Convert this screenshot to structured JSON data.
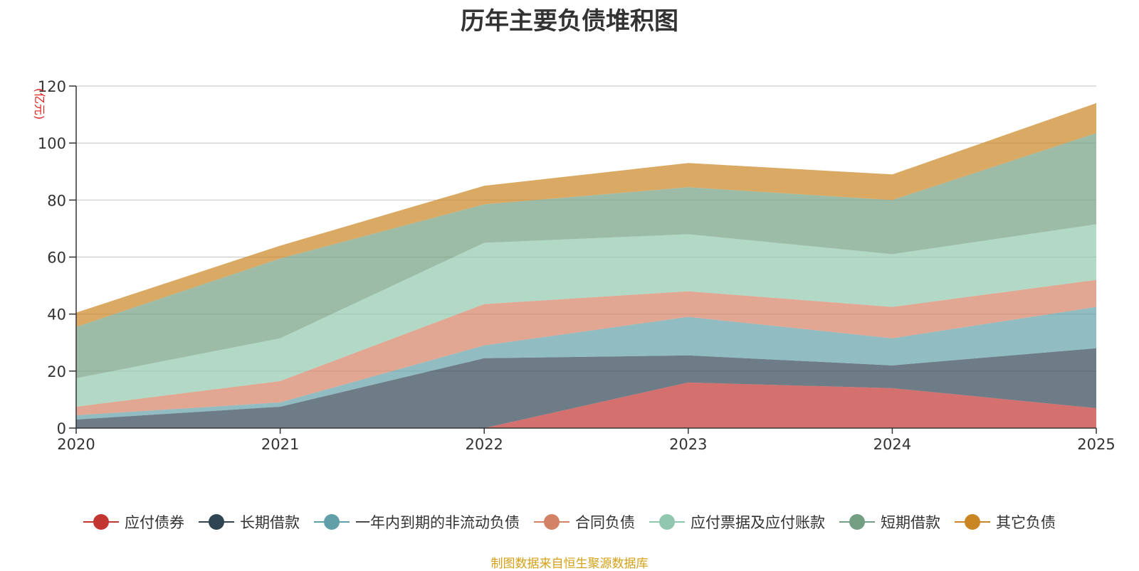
{
  "chart_data": {
    "type": "area",
    "stacked": true,
    "title": "历年主要负债堆积图",
    "unit_label": "(亿元)",
    "source_note": "制图数据来自恒生聚源数据库",
    "x": [
      "2020",
      "2021",
      "2022",
      "2023",
      "2024",
      "2025"
    ],
    "ylim": [
      0,
      120
    ],
    "yticks": [
      0,
      20,
      40,
      60,
      80,
      100,
      120
    ],
    "grid": true,
    "legend_position": "bottom",
    "series": [
      {
        "name": "应付债券",
        "color": "#c23531",
        "values": [
          0,
          0,
          0,
          16,
          14,
          7
        ]
      },
      {
        "name": "长期借款",
        "color": "#2f4554",
        "values": [
          3,
          7.5,
          24.5,
          9.5,
          8,
          21
        ]
      },
      {
        "name": "一年内到期的非流动负债",
        "color": "#61a0a8",
        "values": [
          1.5,
          1.5,
          4.5,
          13.5,
          9.5,
          14.5
        ]
      },
      {
        "name": "合同负债",
        "color": "#d48265",
        "values": [
          3,
          7.5,
          14.5,
          9,
          11,
          9.5
        ]
      },
      {
        "name": "应付票据及应付账款",
        "color": "#91c7ae",
        "values": [
          10,
          15,
          21.5,
          20,
          18.5,
          19.5
        ]
      },
      {
        "name": "短期借款",
        "color": "#749f83",
        "values": [
          18,
          28,
          13.5,
          16.5,
          19,
          32
        ]
      },
      {
        "name": "其它负债",
        "color": "#ca8622",
        "values": [
          5,
          4.5,
          6.5,
          8.5,
          9,
          10.5
        ]
      }
    ]
  }
}
